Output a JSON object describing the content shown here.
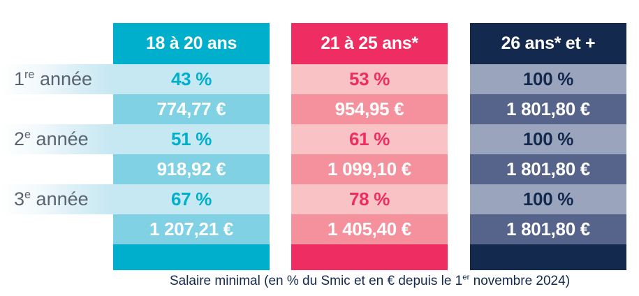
{
  "colors": {
    "cyan_accent": "#00afcb",
    "cyan_percent_bg": "#c5e8f2",
    "cyan_euro_bg": "#7fd1e3",
    "pink_accent": "#ee2d62",
    "pink_percent_bg": "#f9c2c4",
    "pink_euro_bg": "#f5919c",
    "navy_accent": "#14294e",
    "navy_percent_bg": "#9aa4bd",
    "navy_euro_bg": "#56648b",
    "row_label_text": "#5a6470"
  },
  "row_labels": [
    {
      "num": "1",
      "sup": "re",
      "rest": " année"
    },
    {
      "num": "2",
      "sup": "e",
      "rest": " année"
    },
    {
      "num": "3",
      "sup": "e",
      "rest": " année"
    }
  ],
  "columns": [
    {
      "header": "18 à 20 ans",
      "rows": [
        {
          "percent": "43 %",
          "euro": "774,77 €"
        },
        {
          "percent": "51 %",
          "euro": "918,92 €"
        },
        {
          "percent": "67 %",
          "euro": "1 207,21 €"
        }
      ]
    },
    {
      "header": "21 à 25 ans*",
      "rows": [
        {
          "percent": "53 %",
          "euro": "954,95 €"
        },
        {
          "percent": "61 %",
          "euro": "1 099,10 €"
        },
        {
          "percent": "78 %",
          "euro": "1 405,40 €"
        }
      ]
    },
    {
      "header": "26 ans* et +",
      "rows": [
        {
          "percent": "100 %",
          "euro": "1 801,80 €"
        },
        {
          "percent": "100 %",
          "euro": "1 801,80 €"
        },
        {
          "percent": "100 %",
          "euro": "1 801,80 €"
        }
      ]
    }
  ],
  "caption": {
    "prefix": "Salaire minimal (en % du Smic et en € depuis le 1",
    "sup": "er",
    "suffix": " novembre 2024)"
  },
  "chart_data": {
    "type": "table",
    "title": "Salaire minimal (en % du Smic et en € depuis le 1er novembre 2024)",
    "columns": [
      "18 à 20 ans",
      "21 à 25 ans*",
      "26 ans* et +"
    ],
    "rows": [
      "1re année",
      "2e année",
      "3e année"
    ],
    "percent_of_smic": [
      [
        43,
        53,
        100
      ],
      [
        51,
        61,
        100
      ],
      [
        67,
        78,
        100
      ]
    ],
    "euros": [
      [
        774.77,
        954.95,
        1801.8
      ],
      [
        918.92,
        1099.1,
        1801.8
      ],
      [
        1207.21,
        1405.4,
        1801.8
      ]
    ]
  }
}
